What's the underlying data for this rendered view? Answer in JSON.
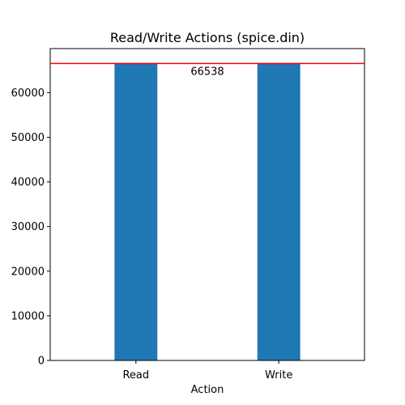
{
  "chart_data": {
    "type": "bar",
    "title": "Read/Write Actions (spice.din)",
    "xlabel": "Action",
    "ylabel": "",
    "categories": [
      "Read",
      "Write"
    ],
    "values": [
      66538,
      66538
    ],
    "ylim": [
      0,
      69865
    ],
    "yticks": [
      0,
      10000,
      20000,
      30000,
      40000,
      50000,
      60000
    ],
    "bar_color": "#1f77b4",
    "reference_line": {
      "value": 66538,
      "color": "#ff0000",
      "label": "66538"
    },
    "grid": false,
    "legend": "none"
  }
}
